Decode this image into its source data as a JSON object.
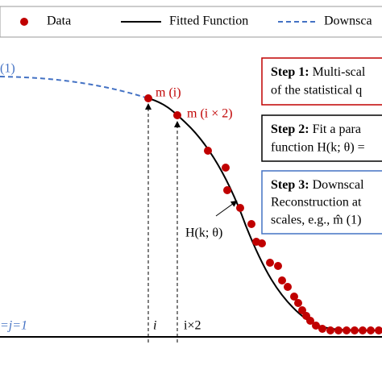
{
  "legend": {
    "items": [
      {
        "label": "Data"
      },
      {
        "label": "Fitted Function"
      },
      {
        "label": "Downsca"
      }
    ]
  },
  "annotations": {
    "left_top": "(1)",
    "left_bottom": "=j=1",
    "point_i": "m (i)",
    "point_i2": "m (i × 2)",
    "function": "H(k; θ)",
    "x_i": "i",
    "x_i2": "i×2"
  },
  "steps": [
    {
      "label": "Step 1:",
      "lines": [
        " Multi-scal",
        "of the statistical q"
      ]
    },
    {
      "label": "Step 2:",
      "lines": [
        " Fit a para",
        "function H(k; θ) ="
      ]
    },
    {
      "label": "Step 3:",
      "lines": [
        " Downscal",
        "Reconstruction at",
        "scales, e.g., m̂ (1)"
      ]
    }
  ]
}
